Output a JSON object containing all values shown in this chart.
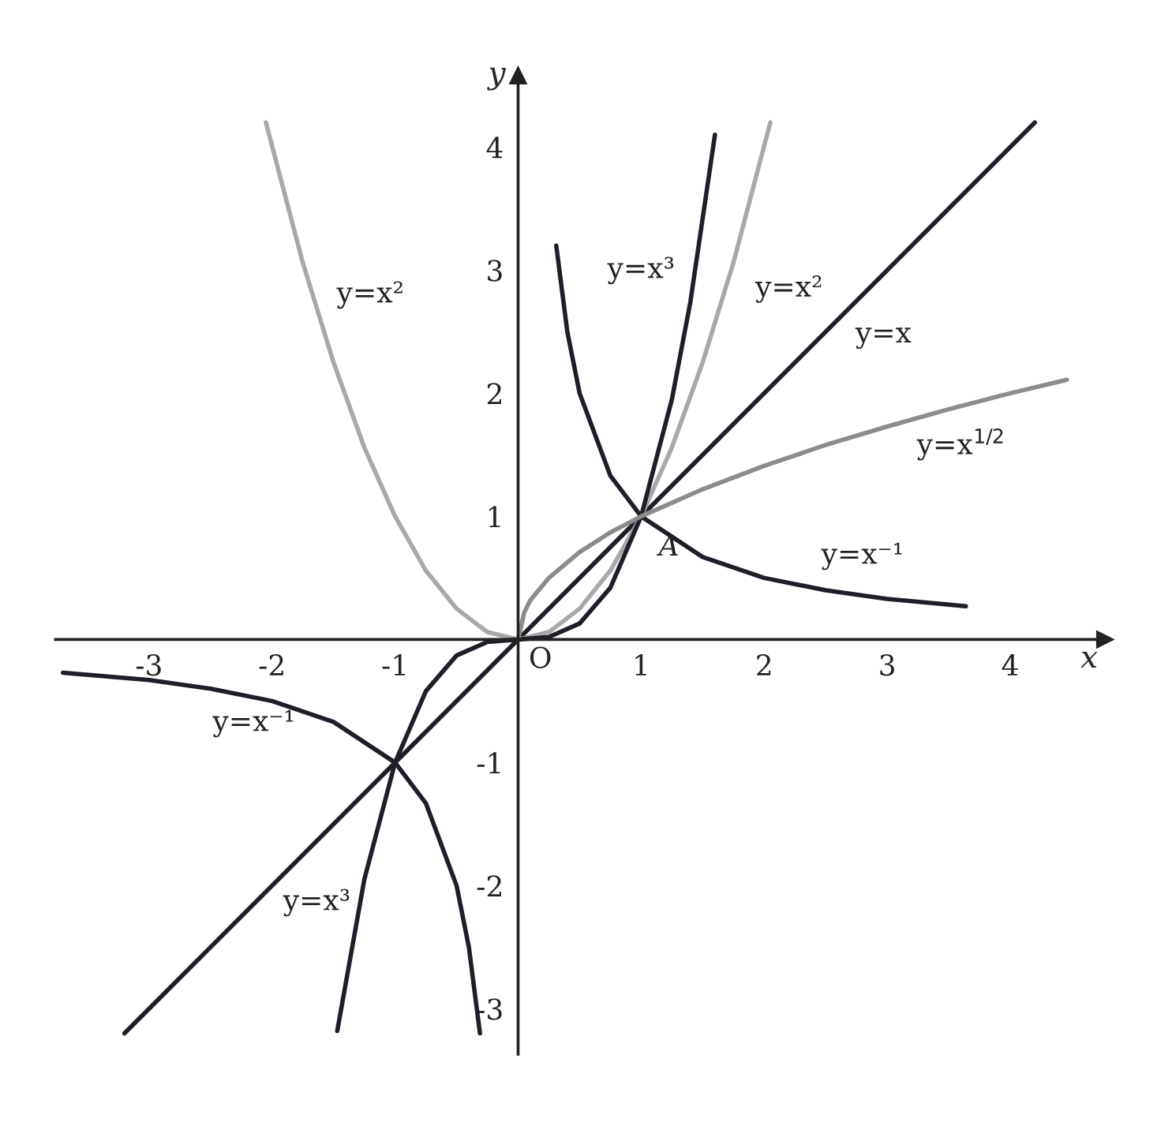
{
  "chart_data": {
    "type": "line",
    "xlabel": "x",
    "ylabel": "y",
    "xlim": [
      -3.76,
      4.77
    ],
    "ylim": [
      -3.37,
      4.58
    ],
    "xticks": [
      -3,
      -2,
      -1,
      1,
      2,
      3,
      4
    ],
    "yticks": [
      -3,
      -2,
      -1,
      1,
      2,
      3,
      4
    ],
    "grid": false,
    "legend": false,
    "marker": "none",
    "line_style": "solid",
    "series": [
      {
        "color": "#1e1e28",
        "x": [
          -3.2,
          4.2
        ],
        "values": [
          -3.2,
          4.2
        ]
      },
      {
        "color": "#a8a8a8",
        "x": [
          -2.05,
          -1.75,
          -1.5,
          -1.25,
          -1,
          -0.75,
          -0.5,
          -0.25,
          0,
          0.25,
          0.5,
          0.75,
          1,
          1.25,
          1.5,
          1.75,
          2.05
        ],
        "values": [
          4.2,
          3.06,
          2.25,
          1.56,
          1,
          0.56,
          0.25,
          0.06,
          0,
          0.06,
          0.25,
          0.56,
          1,
          1.56,
          2.25,
          3.06,
          4.2
        ]
      },
      {
        "color": "#1e1e28",
        "x": [
          -1.47,
          -1.25,
          -1,
          -0.75,
          -0.5,
          -0.25,
          0,
          0.25,
          0.5,
          0.75,
          1,
          1.25,
          1.4,
          1.6
        ],
        "values": [
          -3.18,
          -1.95,
          -1,
          -0.42,
          -0.13,
          -0.02,
          0,
          0.02,
          0.13,
          0.42,
          1,
          1.95,
          2.74,
          4.1
        ]
      },
      {
        "color": "#1e1e28",
        "x": [
          -3.7,
          -3,
          -2.5,
          -2,
          -1.5,
          -1,
          -0.75,
          -0.5,
          -0.4,
          -0.31,
          null,
          0.31,
          0.4,
          0.5,
          0.75,
          1,
          1.5,
          2,
          2.5,
          3,
          3.64
        ],
        "values": [
          -0.27,
          -0.33,
          -0.4,
          -0.5,
          -0.67,
          -1,
          -1.33,
          -2,
          -2.5,
          -3.2,
          null,
          3.2,
          2.5,
          2,
          1.33,
          1,
          0.67,
          0.5,
          0.4,
          0.33,
          0.27
        ]
      },
      {
        "color": "#8c8c8c",
        "x": [
          0,
          0.05,
          0.1,
          0.25,
          0.5,
          0.75,
          1,
          1.5,
          2,
          2.5,
          3,
          3.5,
          4,
          4.46
        ],
        "values": [
          0,
          0.22,
          0.32,
          0.5,
          0.71,
          0.87,
          1,
          1.22,
          1.41,
          1.58,
          1.73,
          1.87,
          2,
          2.11
        ]
      }
    ],
    "annotations": [
      "y=x²",
      "y=x³",
      "y=x²",
      "y=x",
      "y=x$^{1/2}$",
      "y=x⁻¹",
      "y=x⁻¹",
      "y=x³",
      {
        "text": "A",
        "x": 1.0,
        "y": 1.0
      },
      "O"
    ]
  }
}
